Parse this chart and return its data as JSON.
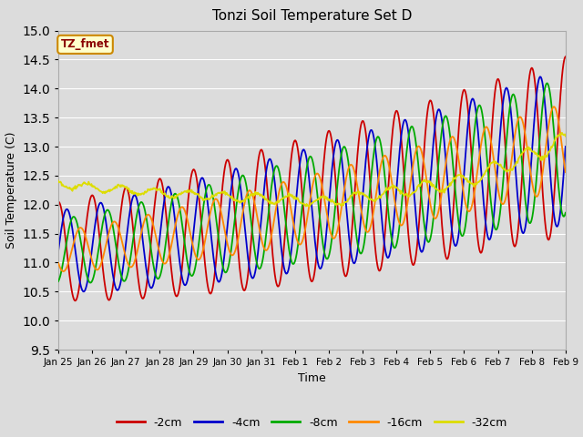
{
  "title": "Tonzi Soil Temperature Set D",
  "xlabel": "Time",
  "ylabel": "Soil Temperature (C)",
  "ylim": [
    9.5,
    15.0
  ],
  "yticks": [
    9.5,
    10.0,
    10.5,
    11.0,
    11.5,
    12.0,
    12.5,
    13.0,
    13.5,
    14.0,
    14.5,
    15.0
  ],
  "line_colors": {
    "-2cm": "#cc0000",
    "-4cm": "#0000cc",
    "-8cm": "#00aa00",
    "-16cm": "#ff8800",
    "-32cm": "#dddd00"
  },
  "legend_label": "TZ_fmet",
  "legend_bg": "#ffffcc",
  "legend_border": "#cc8800",
  "plot_bg": "#dcdcdc",
  "fig_bg": "#dcdcdc",
  "grid_color": "#ffffff",
  "date_labels": [
    "Jan 25",
    "Jan 26",
    "Jan 27",
    "Jan 28",
    "Jan 29",
    "Jan 30",
    "Jan 31",
    "Feb 1",
    "Feb 2",
    "Feb 3",
    "Feb 4",
    "Feb 5",
    "Feb 6",
    "Feb 7",
    "Feb 8",
    "Feb 9"
  ],
  "n_points": 720
}
